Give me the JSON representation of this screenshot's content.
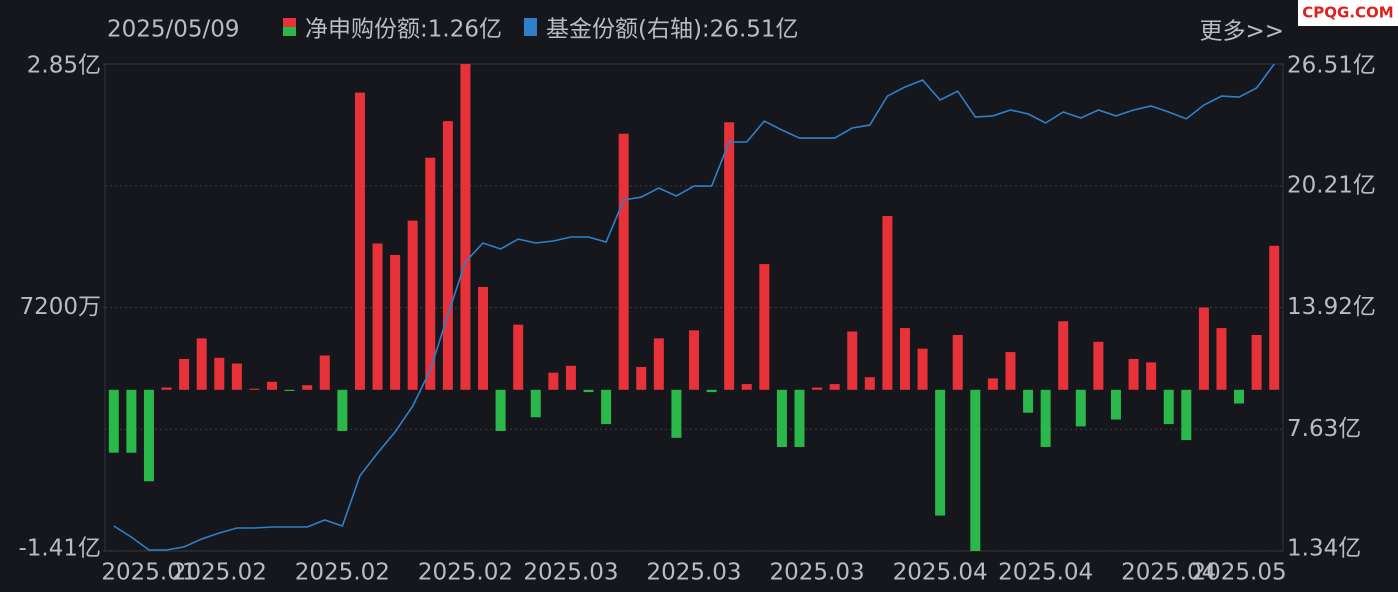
{
  "chart_data": {
    "type": "bar-line",
    "date": "2025/05/09",
    "more": "更多>>",
    "watermark": "CPQG.COM",
    "categories": [
      null,
      null,
      "2025.01",
      null,
      null,
      null,
      "2025.02",
      null,
      null,
      null,
      null,
      null,
      null,
      "2025.02",
      null,
      null,
      null,
      null,
      null,
      null,
      "2025.02",
      null,
      null,
      null,
      null,
      null,
      "2025.03",
      null,
      null,
      null,
      null,
      null,
      null,
      "2025.03",
      null,
      null,
      null,
      null,
      null,
      null,
      "2025.03",
      null,
      null,
      null,
      null,
      null,
      null,
      "2025.04",
      null,
      null,
      null,
      null,
      null,
      "2025.04",
      null,
      null,
      null,
      null,
      null,
      null,
      "2025.04",
      null,
      null,
      null,
      "2025.05",
      null,
      null
    ],
    "series": [
      {
        "name": "净申购份额",
        "legend_value": ":1.26亿",
        "color": "#e8323a",
        "negative_color": "#2bb84a",
        "axis": "y",
        "values": [
          -0.55,
          -0.55,
          -0.8,
          0.02,
          0.27,
          0.45,
          0.28,
          0.23,
          0.01,
          0.07,
          -0.01,
          0.04,
          0.3,
          -0.36,
          2.6,
          1.28,
          1.18,
          1.48,
          2.03,
          2.35,
          2.85,
          0.9,
          -0.36,
          0.57,
          -0.24,
          0.15,
          0.21,
          -0.02,
          -0.3,
          2.24,
          0.2,
          0.45,
          -0.42,
          0.52,
          -0.02,
          2.34,
          0.05,
          1.1,
          -0.5,
          -0.5,
          0.02,
          0.05,
          0.51,
          0.11,
          1.52,
          0.54,
          0.36,
          -1.1,
          0.48,
          -1.41,
          0.1,
          0.33,
          -0.2,
          -0.5,
          0.6,
          -0.32,
          0.42,
          -0.26,
          0.27,
          0.24,
          -0.3,
          -0.44,
          0.72,
          0.54,
          -0.12,
          0.48,
          1.26
        ]
      },
      {
        "name": "基金份额(右轴)",
        "legend_value": ":26.51亿",
        "color": "#2f80c9",
        "axis": "y2",
        "values": [
          2.63,
          2.06,
          1.39,
          1.39,
          1.55,
          1.96,
          2.27,
          2.53,
          2.53,
          2.58,
          2.58,
          2.58,
          2.94,
          2.63,
          5.22,
          6.4,
          7.49,
          8.83,
          10.69,
          13.54,
          16.28,
          17.26,
          16.95,
          17.46,
          17.26,
          17.36,
          17.57,
          17.57,
          17.31,
          19.48,
          19.63,
          20.1,
          19.69,
          20.2,
          20.2,
          22.48,
          22.48,
          23.56,
          23.1,
          22.68,
          22.68,
          22.68,
          23.2,
          23.35,
          24.85,
          25.32,
          25.68,
          24.65,
          25.11,
          23.77,
          23.83,
          24.13,
          23.93,
          23.46,
          24.03,
          23.72,
          24.13,
          23.83,
          24.13,
          24.34,
          24.03,
          23.67,
          24.39,
          24.85,
          24.8,
          25.27,
          26.51
        ]
      }
    ],
    "ylim": [
      -1.41,
      2.85
    ],
    "yticks": [
      {
        "value": 2.85,
        "label": "2.85亿"
      },
      {
        "value": 0.72,
        "label": "7200万"
      },
      {
        "value": -1.41,
        "label": "-1.41亿"
      }
    ],
    "y2lim": [
      1.34,
      26.51
    ],
    "y2ticks": [
      {
        "value": 26.51,
        "label": "26.51亿"
      },
      {
        "value": 20.21,
        "label": "20.21亿"
      },
      {
        "value": 13.92,
        "label": "13.92亿"
      },
      {
        "value": 7.63,
        "label": "7.63亿"
      },
      {
        "value": 1.34,
        "label": "1.34亿"
      }
    ],
    "grid": true
  }
}
